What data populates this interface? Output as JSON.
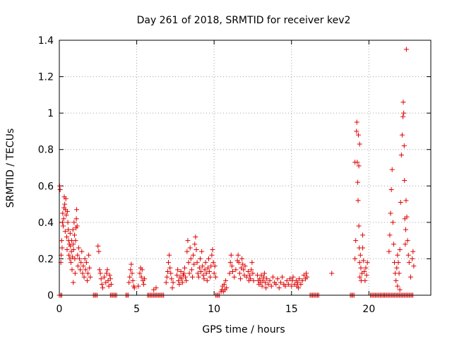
{
  "chart_data": {
    "type": "scatter",
    "title": "Day 261 of 2018, SRMTID for receiver kev2",
    "xlabel": "GPS time / hours",
    "ylabel": "SRMTID / TECUs",
    "xlim": [
      0,
      24
    ],
    "ylim": [
      0,
      1.4
    ],
    "x_ticks": [
      0,
      5,
      10,
      15,
      20
    ],
    "x_tick_labels": [
      "0",
      "5",
      "10",
      "15",
      "20"
    ],
    "y_ticks": [
      0,
      0.2,
      0.4,
      0.6,
      0.8,
      1.0,
      1.2,
      1.4
    ],
    "y_tick_labels": [
      "0",
      "0.2",
      "0.4",
      "0.6",
      "0.8",
      "1",
      "1.2",
      "1.4"
    ],
    "grid": true,
    "marker": "+",
    "marker_color": "#e00000",
    "series": [
      {
        "name": "SRMTID",
        "points": [
          [
            0.02,
            0.6
          ],
          [
            0.05,
            0.58
          ],
          [
            0.1,
            0.18
          ],
          [
            0.12,
            0.22
          ],
          [
            0.15,
            0.3
          ],
          [
            0.18,
            0.26
          ],
          [
            0.2,
            0.4
          ],
          [
            0.22,
            0.45
          ],
          [
            0.25,
            0.38
          ],
          [
            0.28,
            0.42
          ],
          [
            0.3,
            0.48
          ],
          [
            0.32,
            0.54
          ],
          [
            0.35,
            0.5
          ],
          [
            0.38,
            0.35
          ],
          [
            0.4,
            0.47
          ],
          [
            0.42,
            0.53
          ],
          [
            0.45,
            0.44
          ],
          [
            0.48,
            0.32
          ],
          [
            0.5,
            0.25
          ],
          [
            0.52,
            0.46
          ],
          [
            0.55,
            0.4
          ],
          [
            0.58,
            0.36
          ],
          [
            0.6,
            0.3
          ],
          [
            0.62,
            0.22
          ],
          [
            0.65,
            0.28
          ],
          [
            0.68,
            0.2
          ],
          [
            0.7,
            0.34
          ],
          [
            0.72,
            0.27
          ],
          [
            0.75,
            0.18
          ],
          [
            0.78,
            0.24
          ],
          [
            0.8,
            0.3
          ],
          [
            0.82,
            0.14
          ],
          [
            0.85,
            0.21
          ],
          [
            0.88,
            0.36
          ],
          [
            0.9,
            0.28
          ],
          [
            0.92,
            0.25
          ],
          [
            0.95,
            0.4
          ],
          [
            0.98,
            0.33
          ],
          [
            1.0,
            0.2
          ],
          [
            1.02,
            0.12
          ],
          [
            1.05,
            0.3
          ],
          [
            1.08,
            0.37
          ],
          [
            1.1,
            0.42
          ],
          [
            1.12,
            0.47
          ],
          [
            1.15,
            0.38
          ],
          [
            1.18,
            0.22
          ],
          [
            1.2,
            0.16
          ],
          [
            1.25,
            0.26
          ],
          [
            1.3,
            0.2
          ],
          [
            1.35,
            0.14
          ],
          [
            1.4,
            0.18
          ],
          [
            1.45,
            0.24
          ],
          [
            1.5,
            0.12
          ],
          [
            1.55,
            0.16
          ],
          [
            1.6,
            0.1
          ],
          [
            1.65,
            0.2
          ],
          [
            1.7,
            0.14
          ],
          [
            1.75,
            0.18
          ],
          [
            1.8,
            0.08
          ],
          [
            1.85,
            0.12
          ],
          [
            1.9,
            0.22
          ],
          [
            1.95,
            0.15
          ],
          [
            2.0,
            0.1
          ],
          [
            0.9,
            0.07
          ],
          [
            2.5,
            0.27
          ],
          [
            2.55,
            0.24
          ],
          [
            2.6,
            0.14
          ],
          [
            2.65,
            0.12
          ],
          [
            2.7,
            0.09
          ],
          [
            2.75,
            0.06
          ],
          [
            2.8,
            0.04
          ],
          [
            2.9,
            0.1
          ],
          [
            3.0,
            0.07
          ],
          [
            3.05,
            0.12
          ],
          [
            3.1,
            0.14
          ],
          [
            3.15,
            0.08
          ],
          [
            3.2,
            0.05
          ],
          [
            3.25,
            0.11
          ],
          [
            3.3,
            0.09
          ],
          [
            3.35,
            0.06
          ],
          [
            4.5,
            0.07
          ],
          [
            4.55,
            0.1
          ],
          [
            4.6,
            0.14
          ],
          [
            4.65,
            0.17
          ],
          [
            4.7,
            0.12
          ],
          [
            4.75,
            0.08
          ],
          [
            4.8,
            0.05
          ],
          [
            4.85,
            0.04
          ],
          [
            5.2,
            0.12
          ],
          [
            5.25,
            0.15
          ],
          [
            5.3,
            0.1
          ],
          [
            5.35,
            0.14
          ],
          [
            5.4,
            0.08
          ],
          [
            5.45,
            0.06
          ],
          [
            5.5,
            0.09
          ],
          [
            5.1,
            0.05
          ],
          [
            6.1,
            0.03
          ],
          [
            6.25,
            0.04
          ],
          [
            6.9,
            0.07
          ],
          [
            6.95,
            0.1
          ],
          [
            7.0,
            0.13
          ],
          [
            7.05,
            0.18
          ],
          [
            7.1,
            0.22
          ],
          [
            7.15,
            0.15
          ],
          [
            7.2,
            0.12
          ],
          [
            7.25,
            0.09
          ],
          [
            7.3,
            0.04
          ],
          [
            7.35,
            0.07
          ],
          [
            7.6,
            0.11
          ],
          [
            7.65,
            0.14
          ],
          [
            7.7,
            0.08
          ],
          [
            7.75,
            0.06
          ],
          [
            7.8,
            0.1
          ],
          [
            7.85,
            0.13
          ],
          [
            7.9,
            0.09
          ],
          [
            7.95,
            0.07
          ],
          [
            8.0,
            0.11
          ],
          [
            8.05,
            0.12
          ],
          [
            8.1,
            0.15
          ],
          [
            8.15,
            0.1
          ],
          [
            8.2,
            0.08
          ],
          [
            8.25,
            0.24
          ],
          [
            8.3,
            0.3
          ],
          [
            8.35,
            0.18
          ],
          [
            8.4,
            0.12
          ],
          [
            8.45,
            0.26
          ],
          [
            8.5,
            0.2
          ],
          [
            8.55,
            0.14
          ],
          [
            8.6,
            0.1
          ],
          [
            8.65,
            0.22
          ],
          [
            8.7,
            0.17
          ],
          [
            8.75,
            0.28
          ],
          [
            8.8,
            0.32
          ],
          [
            8.85,
            0.25
          ],
          [
            8.9,
            0.18
          ],
          [
            8.95,
            0.12
          ],
          [
            9.0,
            0.1
          ],
          [
            9.05,
            0.15
          ],
          [
            9.1,
            0.2
          ],
          [
            9.15,
            0.13
          ],
          [
            9.2,
            0.24
          ],
          [
            9.25,
            0.16
          ],
          [
            9.3,
            0.11
          ],
          [
            9.35,
            0.09
          ],
          [
            9.4,
            0.14
          ],
          [
            9.45,
            0.18
          ],
          [
            9.5,
            0.12
          ],
          [
            9.55,
            0.08
          ],
          [
            9.6,
            0.15
          ],
          [
            9.65,
            0.2
          ],
          [
            9.7,
            0.13
          ],
          [
            9.75,
            0.1
          ],
          [
            9.8,
            0.16
          ],
          [
            9.85,
            0.22
          ],
          [
            9.9,
            0.25
          ],
          [
            9.95,
            0.18
          ],
          [
            10.0,
            0.12
          ],
          [
            10.05,
            0.16
          ],
          [
            10.1,
            0.1
          ],
          [
            10.45,
            0.02
          ],
          [
            10.5,
            0.03
          ],
          [
            10.55,
            0.05
          ],
          [
            10.6,
            0.02
          ],
          [
            10.65,
            0.06
          ],
          [
            10.7,
            0.03
          ],
          [
            10.75,
            0.08
          ],
          [
            10.8,
            0.04
          ],
          [
            11.0,
            0.12
          ],
          [
            11.05,
            0.18
          ],
          [
            11.1,
            0.22
          ],
          [
            11.15,
            0.16
          ],
          [
            11.2,
            0.13
          ],
          [
            11.3,
            0.1
          ],
          [
            11.4,
            0.14
          ],
          [
            11.5,
            0.19
          ],
          [
            11.55,
            0.22
          ],
          [
            11.6,
            0.18
          ],
          [
            11.65,
            0.12
          ],
          [
            11.7,
            0.09
          ],
          [
            11.75,
            0.15
          ],
          [
            11.8,
            0.2
          ],
          [
            11.85,
            0.17
          ],
          [
            11.9,
            0.14
          ],
          [
            11.95,
            0.11
          ],
          [
            12.0,
            0.16
          ],
          [
            12.1,
            0.1
          ],
          [
            12.2,
            0.13
          ],
          [
            12.25,
            0.08
          ],
          [
            12.3,
            0.11
          ],
          [
            12.35,
            0.09
          ],
          [
            12.4,
            0.14
          ],
          [
            12.45,
            0.18
          ],
          [
            12.5,
            0.12
          ],
          [
            12.55,
            0.08
          ],
          [
            12.8,
            0.11
          ],
          [
            12.85,
            0.08
          ],
          [
            12.9,
            0.06
          ],
          [
            12.95,
            0.09
          ],
          [
            13.0,
            0.07
          ],
          [
            13.05,
            0.11
          ],
          [
            13.1,
            0.05
          ],
          [
            13.15,
            0.08
          ],
          [
            13.2,
            0.1
          ],
          [
            13.25,
            0.12
          ],
          [
            13.3,
            0.07
          ],
          [
            13.35,
            0.04
          ],
          [
            13.4,
            0.09
          ],
          [
            13.5,
            0.06
          ],
          [
            13.6,
            0.08
          ],
          [
            13.7,
            0.05
          ],
          [
            13.8,
            0.1
          ],
          [
            13.9,
            0.07
          ],
          [
            14.0,
            0.06
          ],
          [
            14.1,
            0.09
          ],
          [
            14.2,
            0.04
          ],
          [
            14.3,
            0.07
          ],
          [
            14.4,
            0.1
          ],
          [
            14.5,
            0.06
          ],
          [
            14.6,
            0.05
          ],
          [
            14.7,
            0.08
          ],
          [
            14.8,
            0.06
          ],
          [
            14.9,
            0.09
          ],
          [
            15.0,
            0.05
          ],
          [
            15.05,
            0.08
          ],
          [
            15.1,
            0.1
          ],
          [
            15.2,
            0.06
          ],
          [
            15.3,
            0.08
          ],
          [
            15.35,
            0.05
          ],
          [
            15.4,
            0.07
          ],
          [
            15.5,
            0.09
          ],
          [
            15.6,
            0.06
          ],
          [
            15.7,
            0.08
          ],
          [
            15.8,
            0.11
          ],
          [
            15.9,
            0.09
          ],
          [
            15.95,
            0.12
          ],
          [
            16.0,
            0.1
          ],
          [
            15.45,
            0.04
          ],
          [
            17.6,
            0.12
          ],
          [
            19.1,
            0.2
          ],
          [
            19.15,
            0.3
          ],
          [
            19.2,
            0.9
          ],
          [
            19.22,
            0.95
          ],
          [
            19.25,
            0.73
          ],
          [
            19.28,
            0.62
          ],
          [
            19.3,
            0.52
          ],
          [
            19.32,
            0.88
          ],
          [
            19.35,
            0.38
          ],
          [
            19.38,
            0.26
          ],
          [
            19.4,
            0.18
          ],
          [
            19.42,
            0.1
          ],
          [
            19.45,
            0.22
          ],
          [
            19.48,
            0.15
          ],
          [
            19.5,
            0.08
          ],
          [
            19.55,
            0.12
          ],
          [
            19.6,
            0.26
          ],
          [
            19.65,
            0.19
          ],
          [
            19.7,
            0.13
          ],
          [
            19.75,
            0.08
          ],
          [
            19.8,
            0.15
          ],
          [
            19.85,
            0.11
          ],
          [
            19.9,
            0.18
          ],
          [
            19.1,
            0.73
          ],
          [
            19.4,
            0.83
          ],
          [
            19.35,
            0.71
          ],
          [
            19.6,
            0.33
          ],
          [
            21.3,
            0.24
          ],
          [
            21.35,
            0.33
          ],
          [
            21.4,
            0.45
          ],
          [
            21.45,
            0.58
          ],
          [
            21.5,
            0.69
          ],
          [
            21.55,
            0.4
          ],
          [
            21.6,
            0.28
          ],
          [
            21.65,
            0.18
          ],
          [
            21.7,
            0.12
          ],
          [
            21.75,
            0.08
          ],
          [
            21.8,
            0.15
          ],
          [
            21.85,
            0.22
          ],
          [
            21.9,
            0.18
          ],
          [
            21.95,
            0.12
          ],
          [
            22.0,
            0.25
          ],
          [
            22.05,
            0.51
          ],
          [
            22.1,
            0.77
          ],
          [
            22.15,
            0.88
          ],
          [
            22.2,
            0.98
          ],
          [
            22.22,
            1.06
          ],
          [
            22.25,
            1.0
          ],
          [
            22.28,
            0.82
          ],
          [
            22.3,
            0.63
          ],
          [
            22.32,
            0.42
          ],
          [
            22.35,
            0.28
          ],
          [
            22.38,
            0.36
          ],
          [
            22.4,
            0.52
          ],
          [
            22.42,
            1.35
          ],
          [
            22.45,
            0.43
          ],
          [
            22.5,
            0.3
          ],
          [
            22.55,
            0.22
          ],
          [
            22.6,
            0.18
          ],
          [
            22.7,
            0.1
          ],
          [
            22.8,
            0.2
          ],
          [
            22.85,
            0.24
          ],
          [
            22.9,
            0.16
          ],
          [
            21.85,
            0.05
          ],
          [
            22.0,
            0.03
          ]
        ]
      }
    ],
    "zero_runs": [
      [
        0.0,
        0.2
      ],
      [
        2.2,
        2.5
      ],
      [
        3.3,
        3.7
      ],
      [
        4.3,
        4.5
      ],
      [
        5.7,
        6.8
      ],
      [
        10.1,
        10.4
      ],
      [
        16.2,
        16.8
      ],
      [
        18.8,
        19.1
      ],
      [
        20.1,
        21.0
      ],
      [
        21.0,
        22.9
      ]
    ]
  }
}
